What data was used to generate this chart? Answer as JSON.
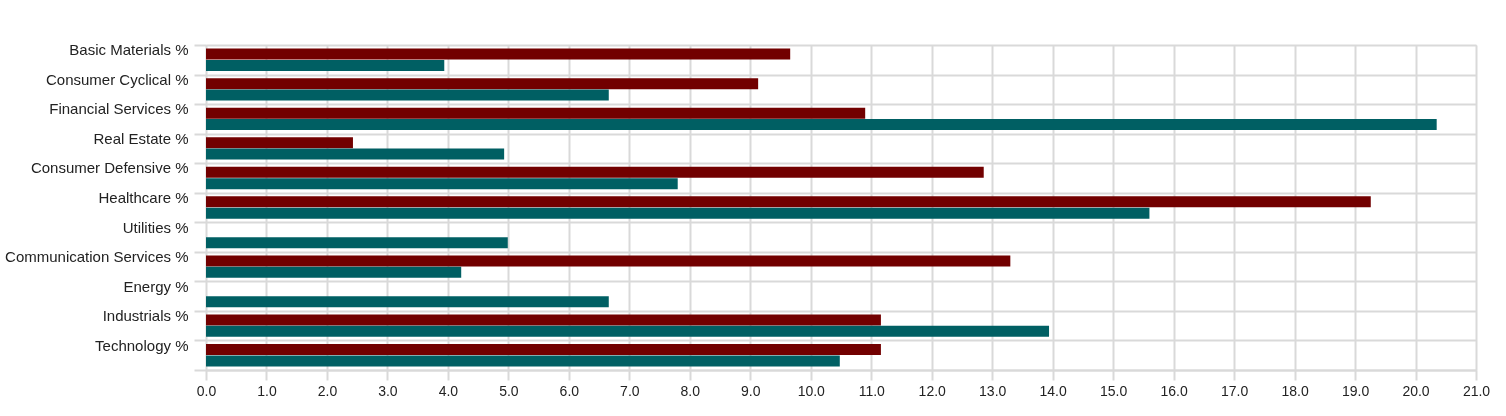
{
  "chart_data": {
    "type": "bar",
    "orientation": "horizontal",
    "categories": [
      "Basic Materials %",
      "Consumer Cyclical %",
      "Financial Services %",
      "Real Estate %",
      "Consumer Defensive %",
      "Healthcare %",
      "Utilities %",
      "Communication Services %",
      "Energy %",
      "Industrials %",
      "Technology %"
    ],
    "series": [
      {
        "color": "#720000",
        "values": [
          9.66,
          9.13,
          10.9,
          2.43,
          12.86,
          19.26,
          null,
          13.3,
          null,
          11.16,
          11.16
        ]
      },
      {
        "color": "#005f63",
        "values": [
          3.94,
          6.66,
          20.35,
          4.93,
          7.8,
          15.6,
          4.99,
          4.22,
          6.66,
          13.94,
          10.48
        ]
      }
    ],
    "xlim": [
      0,
      21
    ],
    "xticks": [
      {
        "value": 0,
        "label": "0.0"
      },
      {
        "value": 1,
        "label": "1.0"
      },
      {
        "value": 2,
        "label": "2.0"
      },
      {
        "value": 3,
        "label": "3.0"
      },
      {
        "value": 4,
        "label": "4.0"
      },
      {
        "value": 5,
        "label": "5.0"
      },
      {
        "value": 6,
        "label": "6.0"
      },
      {
        "value": 7,
        "label": "7.0"
      },
      {
        "value": 8,
        "label": "8.0"
      },
      {
        "value": 9,
        "label": "9.0"
      },
      {
        "value": 10,
        "label": "10.0"
      },
      {
        "value": 11,
        "label": "11.0"
      },
      {
        "value": 12,
        "label": "12.0"
      },
      {
        "value": 13,
        "label": "13.0"
      },
      {
        "value": 14,
        "label": "14.0"
      },
      {
        "value": 15,
        "label": "15.0"
      },
      {
        "value": 16,
        "label": "16.0"
      },
      {
        "value": 17,
        "label": "17.0"
      },
      {
        "value": 18,
        "label": "18.0"
      },
      {
        "value": 19,
        "label": "19.0"
      },
      {
        "value": 20,
        "label": "20.0"
      },
      {
        "value": 21,
        "label": "21.0"
      }
    ],
    "grid": true
  }
}
